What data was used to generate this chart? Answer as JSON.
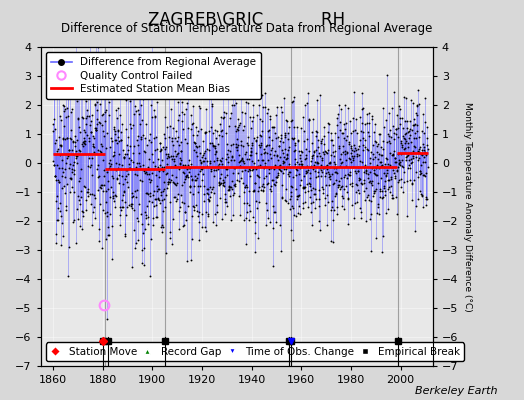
{
  "title": "ZAGREB\\GRIC           RH",
  "subtitle": "Difference of Station Temperature Data from Regional Average",
  "ylabel_right": "Monthly Temperature Anomaly Difference (°C)",
  "xlim": [
    1855,
    2013
  ],
  "ylim": [
    -7,
    4
  ],
  "yticks": [
    -7,
    -6,
    -5,
    -4,
    -3,
    -2,
    -1,
    0,
    1,
    2,
    3,
    4
  ],
  "xticks": [
    1860,
    1880,
    1900,
    1920,
    1940,
    1960,
    1980,
    2000
  ],
  "background_color": "#d8d8d8",
  "plot_bg_color": "#e8e8e8",
  "line_color": "#6666ff",
  "dot_color": "#000000",
  "bias_color": "#ff0000",
  "qc_color": "#ff88ff",
  "seed": 42,
  "x_start": 1860.0,
  "x_end": 2011.0,
  "bias_segments": [
    {
      "x_start": 1860.0,
      "x_end": 1881.0,
      "bias": 0.3
    },
    {
      "x_start": 1881.0,
      "x_end": 1882.5,
      "bias": -0.2
    },
    {
      "x_start": 1882.5,
      "x_end": 1905.0,
      "bias": -0.2
    },
    {
      "x_start": 1905.0,
      "x_end": 1953.5,
      "bias": -0.15
    },
    {
      "x_start": 1953.5,
      "x_end": 1998.5,
      "bias": -0.15
    },
    {
      "x_start": 1998.5,
      "x_end": 2011.0,
      "bias": 0.35
    }
  ],
  "break_lines": [
    1881,
    1905,
    1956,
    1999
  ],
  "empirical_breaks": [
    1880,
    1882,
    1905,
    1955,
    1956,
    1999
  ],
  "station_moves": [],
  "record_gaps": [],
  "obs_changes": [
    1956
  ],
  "qc_failed_x": [
    1880.5
  ],
  "qc_failed_y": [
    -4.9
  ],
  "station_move_x": [
    1880
  ],
  "footer": "Berkeley Earth",
  "title_fontsize": 12,
  "subtitle_fontsize": 8.5,
  "tick_fontsize": 8,
  "legend_fontsize": 7.5,
  "footer_fontsize": 8
}
